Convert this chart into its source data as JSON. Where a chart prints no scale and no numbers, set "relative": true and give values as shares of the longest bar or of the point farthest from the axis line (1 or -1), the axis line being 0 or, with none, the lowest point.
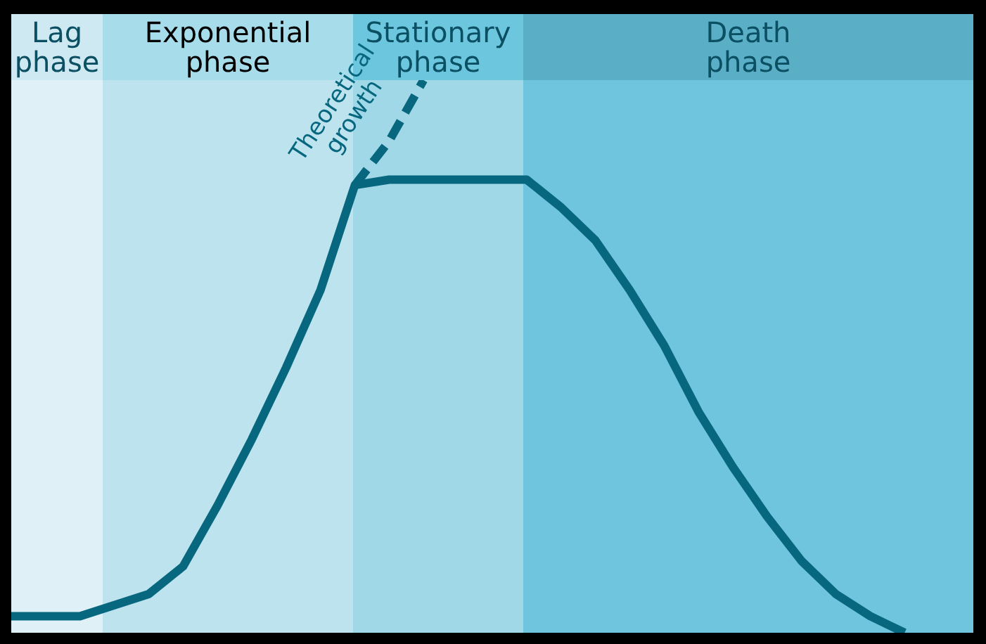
{
  "chart_data": {
    "type": "line",
    "relative": true,
    "legend": false,
    "marker": "none",
    "categories": [
      null,
      null,
      null,
      null,
      null,
      null,
      null,
      null,
      null,
      null,
      null,
      null,
      null,
      null,
      null,
      null,
      null,
      null,
      null,
      null,
      null,
      null,
      null,
      null,
      null,
      null,
      null,
      null,
      null
    ],
    "series": [
      {
        "color": "#07677f",
        "values": [
          0.03,
          0.03,
          0.03,
          0.05,
          0.07,
          0.12,
          0.23,
          0.35,
          0.48,
          0.62,
          0.81,
          0.82,
          0.82,
          0.82,
          0.82,
          0.82,
          0.77,
          0.71,
          0.62,
          0.52,
          0.4,
          0.3,
          0.21,
          0.13,
          0.07,
          0.03,
          0,
          null,
          null
        ]
      },
      {
        "name": "Theoretical growth",
        "color": "#07677f",
        "line_style": "dashed",
        "values": [
          null,
          null,
          null,
          null,
          null,
          null,
          null,
          null,
          null,
          null,
          0.81,
          0.89,
          1,
          null,
          null,
          null,
          null,
          null,
          null,
          null,
          null,
          null,
          null,
          null,
          null,
          null,
          null,
          null,
          null
        ]
      }
    ],
    "annotations": [
      "Lag phase",
      "Exponential phase",
      "Stationary phase",
      "Death phase"
    ]
  }
}
